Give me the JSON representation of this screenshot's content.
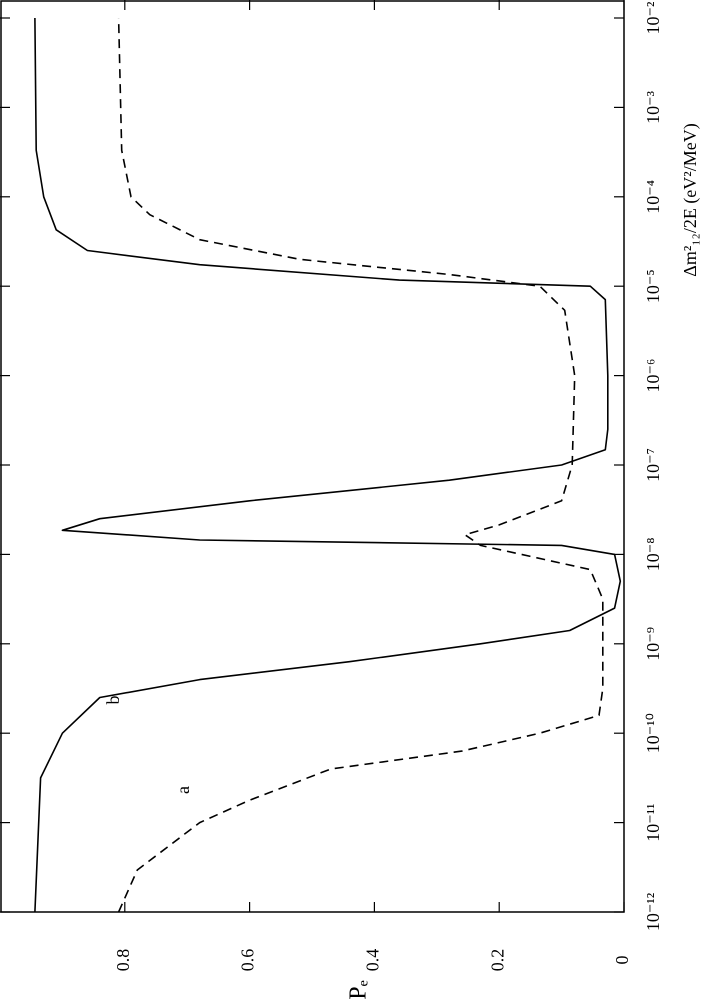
{
  "chart_data": {
    "type": "line",
    "x_label": "Δm²₁₂/2E  (eV²/MeV)",
    "y_label": "Pₑ",
    "x_log": true,
    "xlim": [
      1e-12,
      0.01
    ],
    "xticks": [
      {
        "value": 1e-12,
        "label": "10⁻¹²"
      },
      {
        "value": 1e-11,
        "label": "10⁻¹¹"
      },
      {
        "value": 1e-10,
        "label": "10⁻¹⁰"
      },
      {
        "value": 1e-09,
        "label": "10⁻⁹"
      },
      {
        "value": 1e-08,
        "label": "10⁻⁸"
      },
      {
        "value": 1e-07,
        "label": "10⁻⁷"
      },
      {
        "value": 1e-06,
        "label": "10⁻⁶"
      },
      {
        "value": 1e-05,
        "label": "10⁻⁵"
      },
      {
        "value": 0.0001,
        "label": "10⁻⁴"
      },
      {
        "value": 0.001,
        "label": "10⁻³"
      },
      {
        "value": 0.01,
        "label": "10⁻²"
      }
    ],
    "ylim": [
      0,
      1
    ],
    "yticks": [
      0,
      0.2,
      0.4,
      0.6,
      0.8
    ],
    "series": [
      {
        "name": "a",
        "color": "#000000",
        "dashed": true,
        "x": [
          1e-12,
          2.95e-12,
          1e-11,
          1.78e-11,
          3.98e-11,
          6.31e-11,
          1e-10,
          1.58e-10,
          3.16e-10,
          3.16e-09,
          6.76e-09,
          1.26e-08,
          1.66e-08,
          2.14e-08,
          3.98e-08,
          1e-07,
          1e-06,
          5.37e-06,
          1e-05,
          1.35e-05,
          2e-05,
          3.31e-05,
          6.31e-05,
          0.0001,
          0.000331,
          0.01
        ],
        "values": [
          0.81,
          0.78,
          0.68,
          0.6,
          0.47,
          0.26,
          0.135,
          0.04,
          0.034,
          0.034,
          0.054,
          0.23,
          0.255,
          0.2,
          0.1,
          0.083,
          0.079,
          0.095,
          0.135,
          0.28,
          0.52,
          0.68,
          0.76,
          0.79,
          0.805,
          0.81
        ]
      },
      {
        "name": "b",
        "color": "#000000",
        "dashed": false,
        "x": [
          1e-12,
          3.16e-11,
          1e-10,
          2.51e-10,
          3.98e-10,
          6.31e-10,
          1e-09,
          1.41e-09,
          2.51e-09,
          5.01e-09,
          1e-08,
          1.26e-08,
          1.45e-08,
          1.86e-08,
          2.51e-08,
          3.98e-08,
          6.76e-08,
          1e-07,
          1.48e-07,
          2.51e-07,
          1e-06,
          7.08e-06,
          1e-05,
          1.17e-05,
          1.74e-05,
          2.51e-05,
          4.27e-05,
          0.0001,
          0.000331,
          0.01
        ],
        "values": [
          0.944,
          0.935,
          0.9,
          0.84,
          0.68,
          0.44,
          0.23,
          0.087,
          0.015,
          0.006,
          0.015,
          0.1,
          0.68,
          0.9,
          0.84,
          0.6,
          0.28,
          0.1,
          0.03,
          0.026,
          0.026,
          0.03,
          0.054,
          0.36,
          0.68,
          0.86,
          0.91,
          0.93,
          0.942,
          0.944
        ]
      }
    ]
  }
}
